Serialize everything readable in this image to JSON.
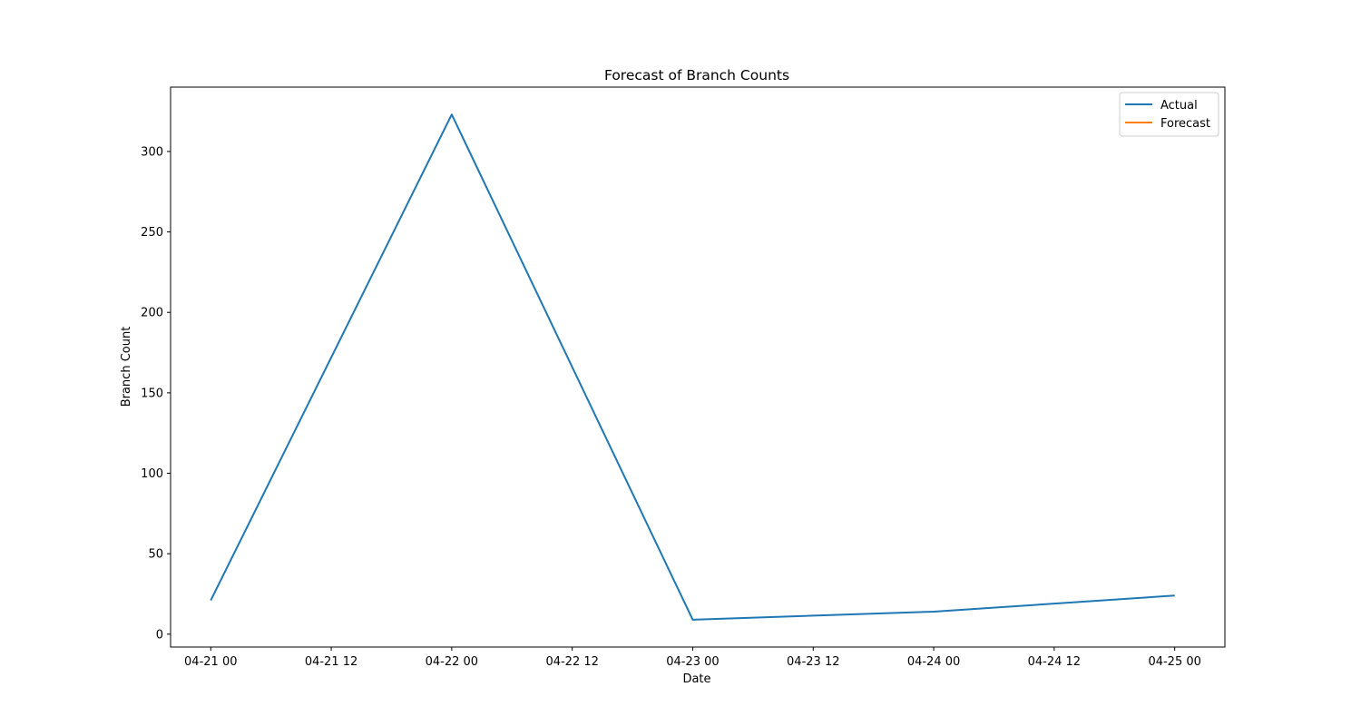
{
  "chart_data": {
    "type": "line",
    "title": "Forecast of Branch Counts",
    "xlabel": "Date",
    "ylabel": "Branch Count",
    "x_ticks": [
      "04-21 00",
      "04-21 12",
      "04-22 00",
      "04-22 12",
      "04-23 00",
      "04-23 12",
      "04-24 00",
      "04-24 12",
      "04-25 00"
    ],
    "y_ticks": [
      0,
      50,
      100,
      150,
      200,
      250,
      300
    ],
    "ylim": [
      -8,
      340
    ],
    "xlim": [
      "04-20 20",
      "04-25 05"
    ],
    "grid": false,
    "legend_position": "top-right",
    "series": [
      {
        "name": "Actual",
        "color": "#1f77b4",
        "x": [
          "04-21 00",
          "04-22 00",
          "04-23 00",
          "04-24 00",
          "04-25 00"
        ],
        "values": [
          21,
          323,
          9,
          14,
          24
        ]
      },
      {
        "name": "Forecast",
        "color": "#ff7f0e",
        "x": [],
        "values": []
      }
    ]
  }
}
